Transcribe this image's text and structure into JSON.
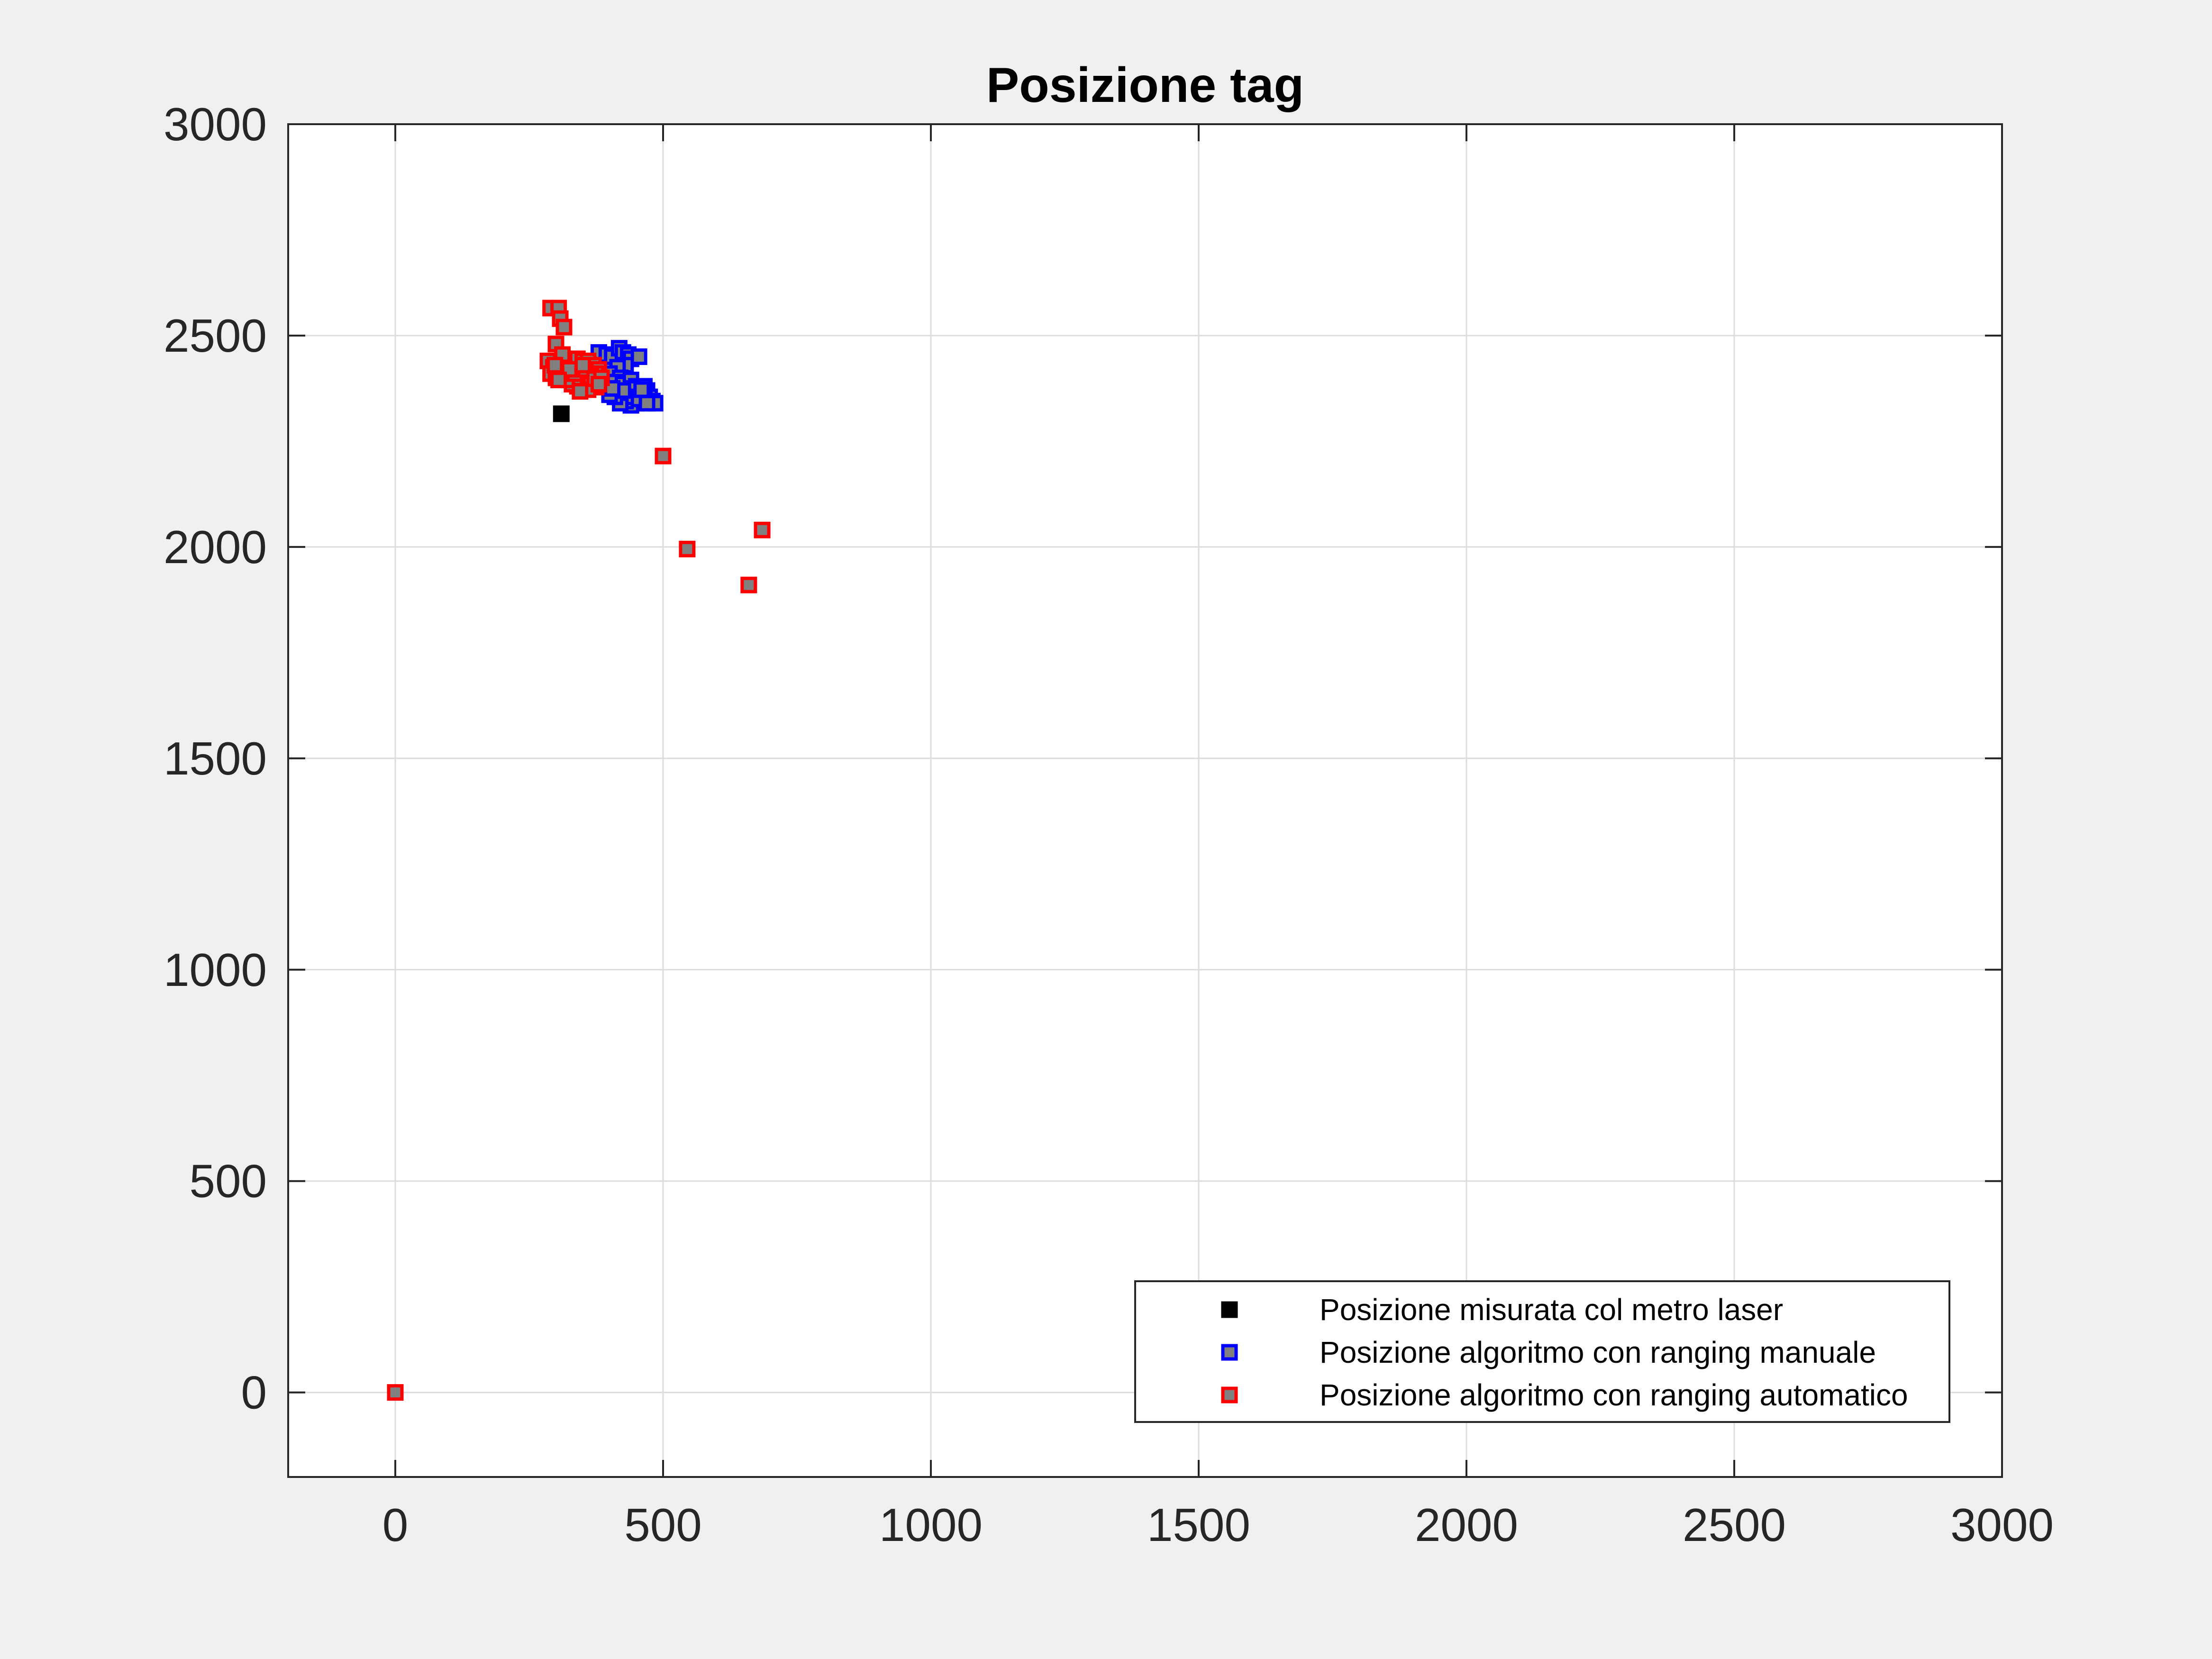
{
  "chart_data": {
    "type": "scatter",
    "title": "Posizione tag",
    "xlabel": "",
    "ylabel": "",
    "xlim": [
      -200,
      3000
    ],
    "ylim": [
      -200,
      3000
    ],
    "x_ticks": [
      0,
      500,
      1000,
      1500,
      2000,
      2500,
      3000
    ],
    "y_ticks": [
      0,
      500,
      1000,
      1500,
      2000,
      2500,
      3000
    ],
    "x_tick_labels": [
      "0",
      "500",
      "1000",
      "1500",
      "2000",
      "2500",
      "3000"
    ],
    "y_tick_labels": [
      "0",
      "500",
      "1000",
      "1500",
      "2000",
      "2500",
      "3000"
    ],
    "grid": true,
    "legend_position": "bottom-right",
    "series": [
      {
        "name": "Posizione misurata col metro laser",
        "marker": "square",
        "edge_color": "#000000",
        "face_color": "#000000",
        "points": [
          [
            310,
            2315
          ]
        ]
      },
      {
        "name": "Posizione algoritmo con ranging manuale",
        "marker": "square",
        "edge_color": "#0000ff",
        "face_color": "#808080",
        "points": [
          [
            380,
            2460
          ],
          [
            395,
            2455
          ],
          [
            405,
            2450
          ],
          [
            418,
            2470
          ],
          [
            425,
            2460
          ],
          [
            435,
            2455
          ],
          [
            440,
            2445
          ],
          [
            455,
            2450
          ],
          [
            430,
            2430
          ],
          [
            415,
            2425
          ],
          [
            400,
            2410
          ],
          [
            420,
            2400
          ],
          [
            410,
            2390
          ],
          [
            425,
            2385
          ],
          [
            440,
            2395
          ],
          [
            450,
            2380
          ],
          [
            455,
            2370
          ],
          [
            470,
            2370
          ],
          [
            460,
            2360
          ],
          [
            475,
            2355
          ],
          [
            480,
            2345
          ],
          [
            485,
            2340
          ],
          [
            465,
            2345
          ],
          [
            450,
            2340
          ],
          [
            440,
            2335
          ],
          [
            430,
            2345
          ],
          [
            420,
            2340
          ],
          [
            410,
            2355
          ],
          [
            400,
            2360
          ],
          [
            435,
            2365
          ],
          [
            445,
            2375
          ],
          [
            445,
            2355
          ],
          [
            455,
            2350
          ],
          [
            465,
            2380
          ],
          [
            425,
            2370
          ],
          [
            405,
            2375
          ],
          [
            470,
            2340
          ],
          [
            460,
            2372
          ]
        ]
      },
      {
        "name": "Posizione algoritmo con ranging automatico",
        "marker": "square",
        "edge_color": "#ff0000",
        "face_color": "#808080",
        "points": [
          [
            290,
            2565
          ],
          [
            305,
            2565
          ],
          [
            308,
            2540
          ],
          [
            315,
            2520
          ],
          [
            300,
            2480
          ],
          [
            285,
            2440
          ],
          [
            295,
            2425
          ],
          [
            290,
            2410
          ],
          [
            300,
            2400
          ],
          [
            310,
            2410
          ],
          [
            315,
            2430
          ],
          [
            320,
            2445
          ],
          [
            330,
            2440
          ],
          [
            340,
            2445
          ],
          [
            350,
            2440
          ],
          [
            360,
            2440
          ],
          [
            370,
            2430
          ],
          [
            380,
            2420
          ],
          [
            375,
            2410
          ],
          [
            365,
            2405
          ],
          [
            360,
            2395
          ],
          [
            350,
            2385
          ],
          [
            340,
            2380
          ],
          [
            330,
            2385
          ],
          [
            320,
            2395
          ],
          [
            345,
            2400
          ],
          [
            335,
            2410
          ],
          [
            325,
            2420
          ],
          [
            355,
            2420
          ],
          [
            365,
            2385
          ],
          [
            375,
            2378
          ],
          [
            360,
            2372
          ],
          [
            345,
            2368
          ],
          [
            372,
            2398
          ],
          [
            385,
            2400
          ],
          [
            380,
            2385
          ],
          [
            305,
            2395
          ],
          [
            350,
            2430
          ],
          [
            312,
            2455
          ],
          [
            298,
            2430
          ],
          [
            500,
            2215
          ],
          [
            545,
            1995
          ],
          [
            685,
            2040
          ],
          [
            660,
            1910
          ],
          [
            0,
            0
          ]
        ]
      }
    ]
  }
}
